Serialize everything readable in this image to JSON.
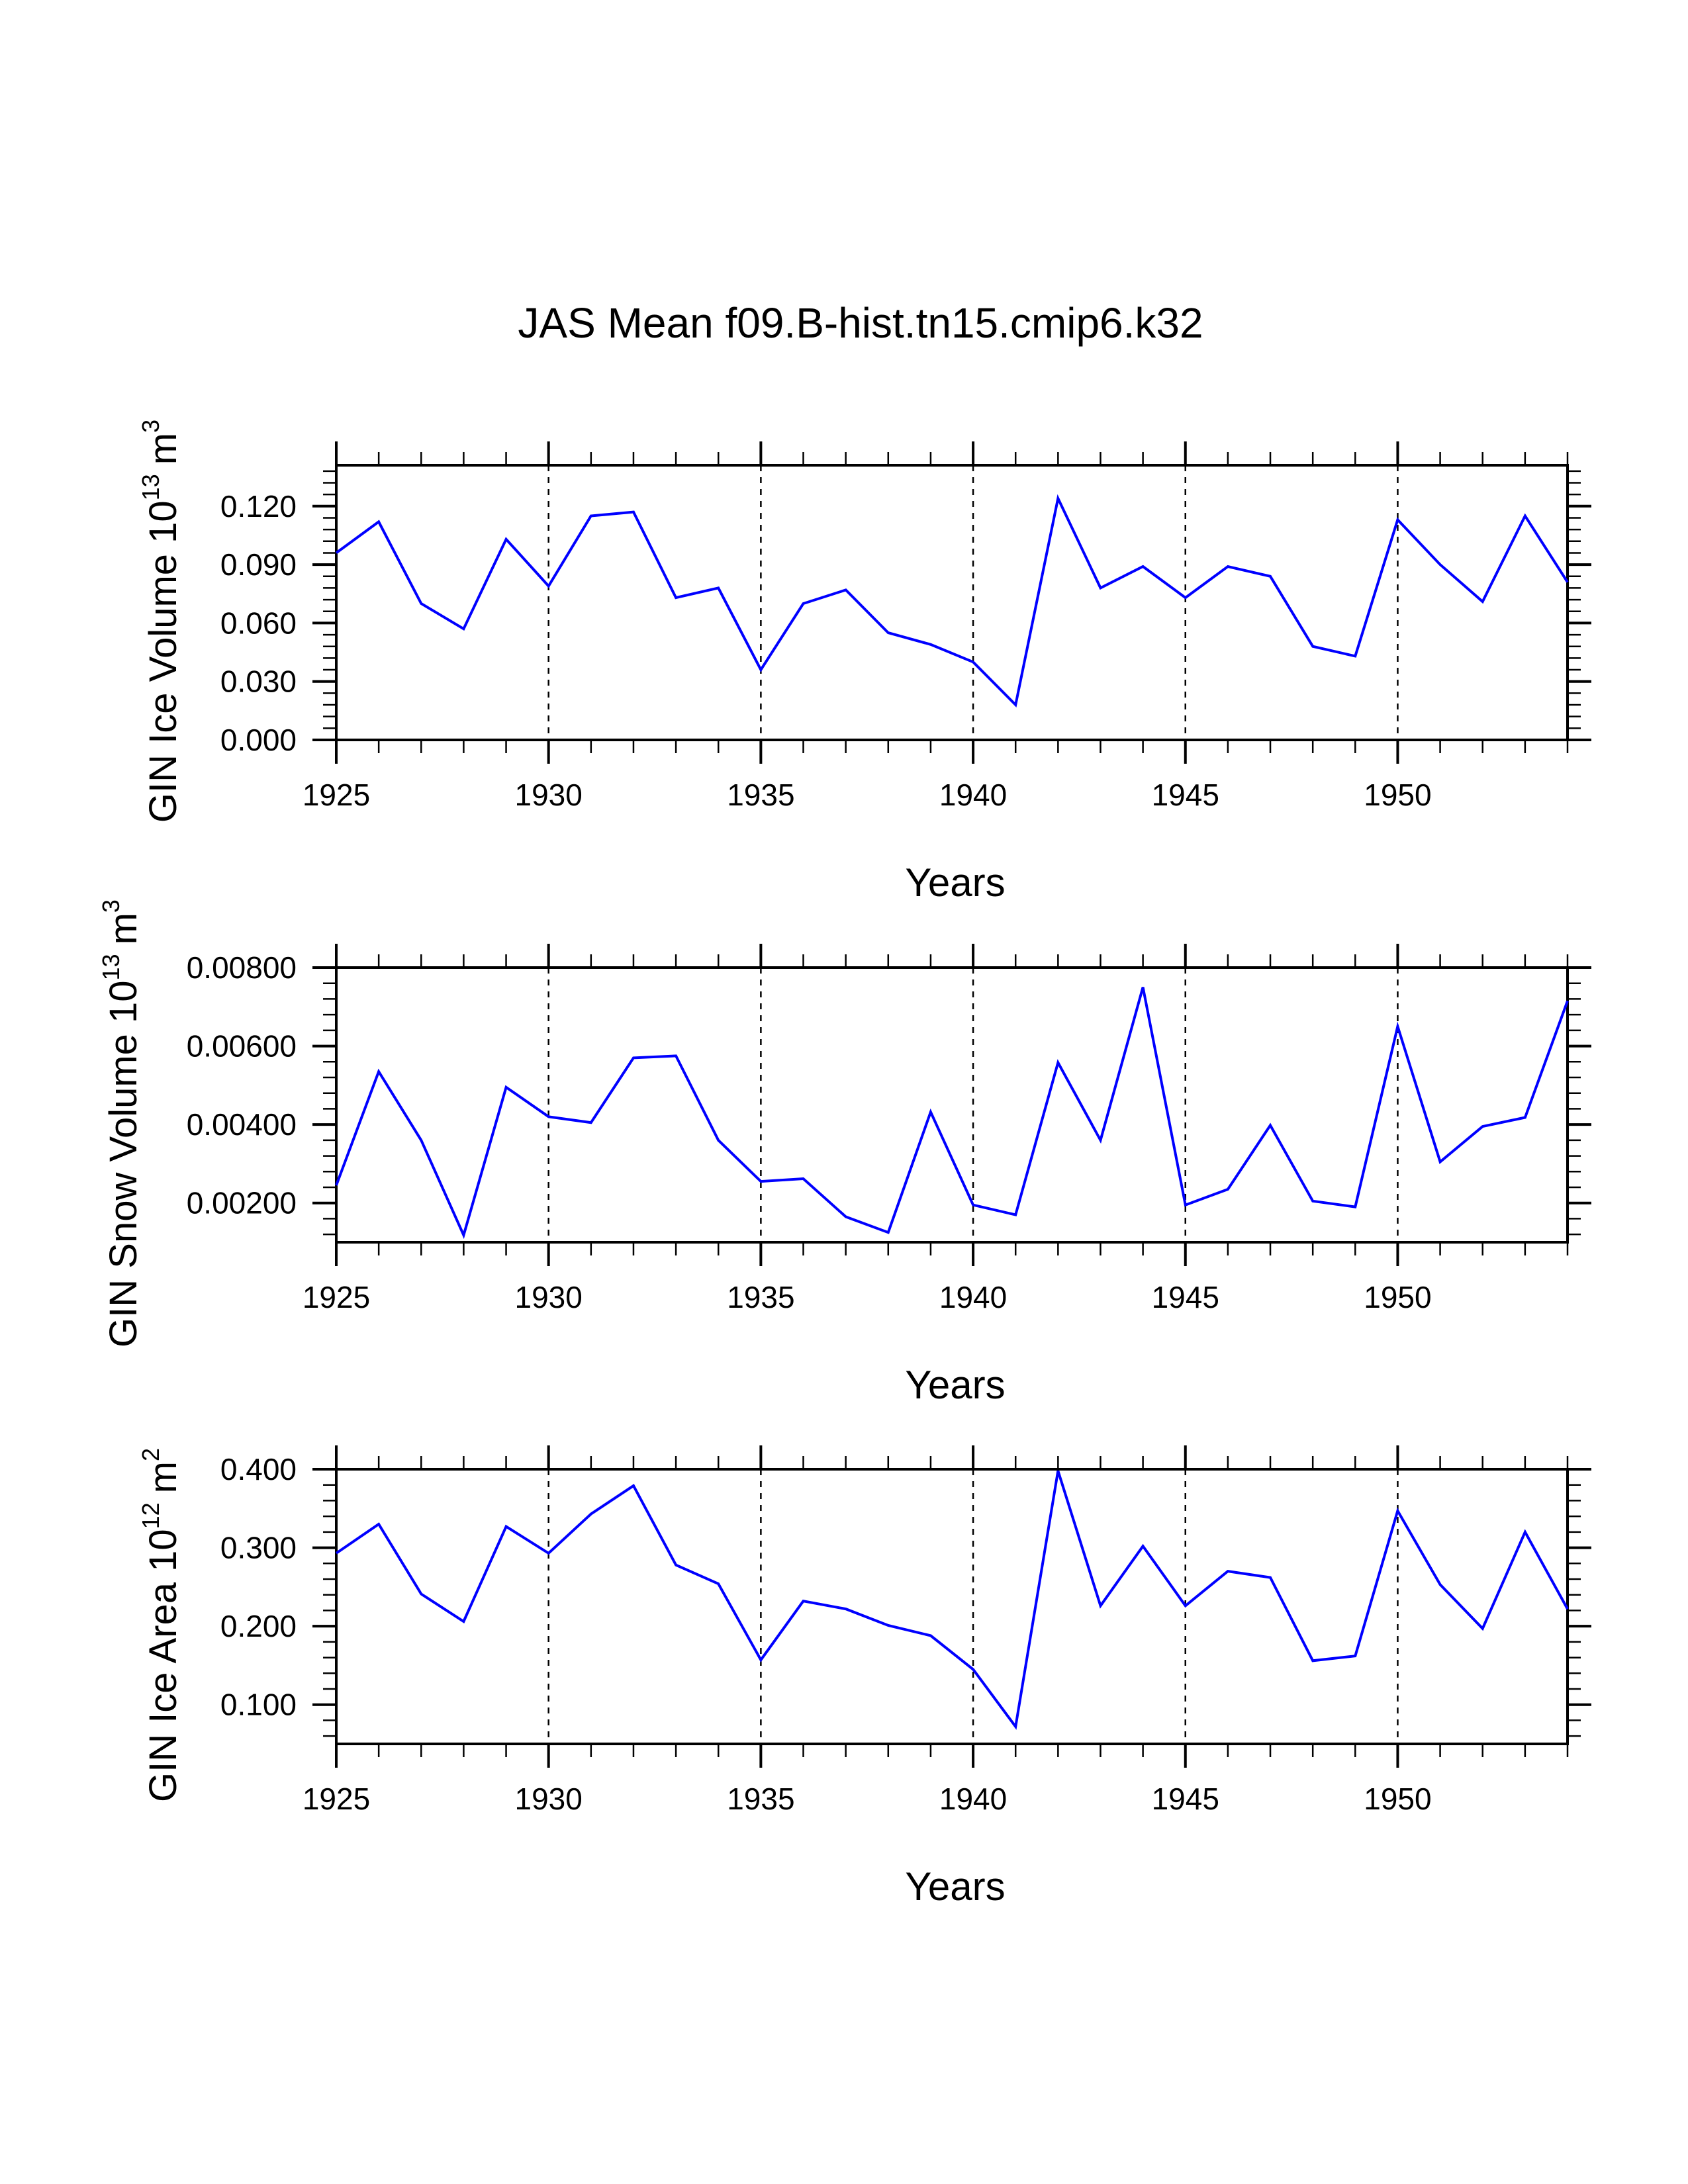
{
  "title": "JAS Mean f09.B-hist.tn15.cmip6.k32",
  "colors": {
    "line": "#0000ff",
    "axis": "#000000",
    "grid": "#000000",
    "background": "#ffffff"
  },
  "chart_data": [
    {
      "type": "line",
      "ylabel_main": "GIN Ice Volume 10",
      "ylabel_exp": "13",
      "ylabel_unit": "m",
      "ylabel_unit_exp": "3",
      "xlabel": "Years",
      "xlim": [
        1925,
        1954
      ],
      "ylim": [
        0.0,
        0.141
      ],
      "xticks": [
        "1925",
        "1930",
        "1935",
        "1940",
        "1945",
        "1950"
      ],
      "yticks": [
        "0.000",
        "0.030",
        "0.060",
        "0.090",
        "0.120"
      ],
      "x": [
        1925,
        1926,
        1927,
        1928,
        1929,
        1930,
        1931,
        1932,
        1933,
        1934,
        1935,
        1936,
        1937,
        1938,
        1939,
        1940,
        1941,
        1942,
        1943,
        1944,
        1945,
        1946,
        1947,
        1948,
        1949,
        1950,
        1951,
        1952,
        1953,
        1954
      ],
      "series": [
        {
          "name": "GIN Ice Volume",
          "values": [
            0.096,
            0.112,
            0.07,
            0.057,
            0.103,
            0.079,
            0.115,
            0.117,
            0.073,
            0.078,
            0.036,
            0.07,
            0.077,
            0.055,
            0.049,
            0.04,
            0.018,
            0.124,
            0.078,
            0.089,
            0.073,
            0.089,
            0.084,
            0.048,
            0.043,
            0.113,
            0.09,
            0.071,
            0.115,
            0.081
          ]
        }
      ],
      "grid": "dashed verticals at major ticks"
    },
    {
      "type": "line",
      "ylabel_main": "GIN Snow Volume 10",
      "ylabel_exp": "13",
      "ylabel_unit": "m",
      "ylabel_unit_exp": "3",
      "xlabel": "Years",
      "xlim": [
        1925,
        1954
      ],
      "ylim": [
        0.001,
        0.008
      ],
      "xticks": [
        "1925",
        "1930",
        "1935",
        "1940",
        "1945",
        "1950"
      ],
      "yticks": [
        "0.00200",
        "0.00400",
        "0.00600",
        "0.00800"
      ],
      "x": [
        1925,
        1926,
        1927,
        1928,
        1929,
        1930,
        1931,
        1932,
        1933,
        1934,
        1935,
        1936,
        1937,
        1938,
        1939,
        1940,
        1941,
        1942,
        1943,
        1944,
        1945,
        1946,
        1947,
        1948,
        1949,
        1950,
        1951,
        1952,
        1953,
        1954
      ],
      "series": [
        {
          "name": "GIN Snow Volume",
          "values": [
            0.00245,
            0.00535,
            0.0036,
            0.00118,
            0.00495,
            0.0042,
            0.00405,
            0.0057,
            0.00575,
            0.0036,
            0.00255,
            0.00262,
            0.00165,
            0.00125,
            0.00432,
            0.00195,
            0.0017,
            0.00558,
            0.0036,
            0.0075,
            0.00195,
            0.00235,
            0.00398,
            0.00205,
            0.0019,
            0.0065,
            0.00305,
            0.00395,
            0.00418,
            0.00715
          ]
        }
      ],
      "grid": "dashed verticals at major ticks"
    },
    {
      "type": "line",
      "ylabel_main": "GIN Ice Area 10",
      "ylabel_exp": "12",
      "ylabel_unit": "m",
      "ylabel_unit_exp": "2",
      "xlabel": "Years",
      "xlim": [
        1925,
        1954
      ],
      "ylim": [
        0.05,
        0.4
      ],
      "xticks": [
        "1925",
        "1930",
        "1935",
        "1940",
        "1945",
        "1950"
      ],
      "yticks": [
        "0.100",
        "0.200",
        "0.300",
        "0.400"
      ],
      "x": [
        1925,
        1926,
        1927,
        1928,
        1929,
        1930,
        1931,
        1932,
        1933,
        1934,
        1935,
        1936,
        1937,
        1938,
        1939,
        1940,
        1941,
        1942,
        1943,
        1944,
        1945,
        1946,
        1947,
        1948,
        1949,
        1950,
        1951,
        1952,
        1953,
        1954
      ],
      "series": [
        {
          "name": "GIN Ice Area",
          "values": [
            0.293,
            0.33,
            0.241,
            0.206,
            0.327,
            0.293,
            0.343,
            0.379,
            0.278,
            0.254,
            0.157,
            0.232,
            0.222,
            0.201,
            0.188,
            0.145,
            0.072,
            0.398,
            0.226,
            0.302,
            0.226,
            0.27,
            0.262,
            0.156,
            0.162,
            0.347,
            0.253,
            0.197,
            0.32,
            0.222
          ]
        }
      ],
      "grid": "dashed verticals at major ticks"
    }
  ]
}
